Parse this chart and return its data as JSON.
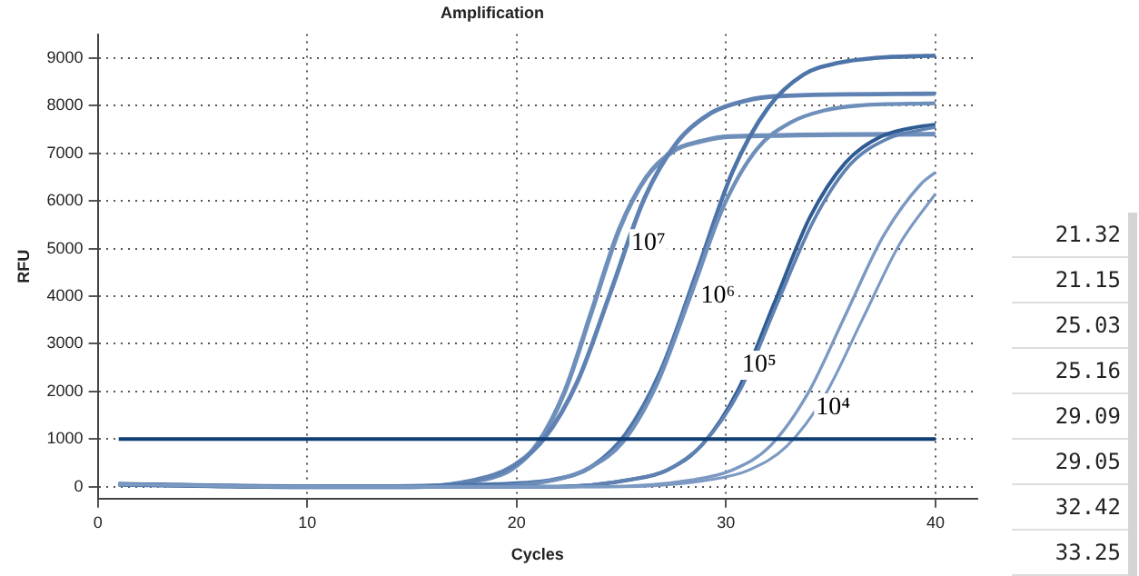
{
  "chart_data": {
    "type": "line",
    "title": "Amplification",
    "xlabel": "Cycles",
    "ylabel": "RFU",
    "xlim": [
      0,
      42
    ],
    "xticks": [
      0,
      10,
      20,
      30,
      40
    ],
    "ylim": [
      -250,
      9500
    ],
    "yticks": [
      0,
      1000,
      2000,
      3000,
      4000,
      5000,
      6000,
      7000,
      8000,
      9000
    ],
    "grid": true,
    "legend": false,
    "marker": "none",
    "line_style": "solid",
    "series": [
      {
        "color": "#6f8fbb",
        "x": [
          1,
          10,
          15,
          18.4,
          19.7,
          21,
          22.3,
          23.6,
          24.9,
          26.2,
          27.5,
          28.8,
          30.1,
          40
        ],
        "values": [
          50,
          0,
          0,
          150,
          350,
          900,
          2000,
          3700,
          5400,
          6500,
          7050,
          7250,
          7350,
          7400
        ]
      },
      {
        "color": "#5f82b2",
        "x": [
          1,
          10,
          15,
          18.1,
          19.7,
          21.3,
          22.9,
          24.5,
          26.1,
          27.7,
          29.3,
          30.9,
          32.5,
          40
        ],
        "values": [
          50,
          0,
          0,
          150,
          400,
          1000,
          2200,
          4100,
          6050,
          7250,
          7850,
          8100,
          8200,
          8250
        ]
      },
      {
        "color": "#4d74a8",
        "x": [
          1,
          10,
          19,
          21.8,
          23.5,
          25.2,
          26.9,
          28.6,
          30.3,
          32,
          33.7,
          35.4,
          37.1,
          40
        ],
        "values": [
          50,
          0,
          50,
          150,
          400,
          1100,
          2450,
          4500,
          6600,
          7950,
          8650,
          8900,
          9000,
          9050
        ]
      },
      {
        "color": "#6f8fbb",
        "x": [
          1,
          10,
          18,
          21.9,
          23.5,
          25.1,
          26.7,
          28.3,
          29.9,
          31.5,
          33.1,
          34.7,
          36.3,
          40
        ],
        "values": [
          50,
          0,
          0,
          150,
          400,
          950,
          2150,
          4000,
          5900,
          7100,
          7650,
          7900,
          8000,
          8050
        ]
      },
      {
        "color": "#2f5b93",
        "x": [
          1,
          10,
          22,
          25.5,
          27.2,
          28.9,
          30.6,
          32.3,
          34,
          35.7,
          37.4,
          39.1,
          40
        ],
        "values": [
          50,
          0,
          0,
          150,
          350,
          900,
          2050,
          3850,
          5650,
          6800,
          7350,
          7550,
          7600
        ]
      },
      {
        "color": "#5f82b2",
        "x": [
          1,
          10,
          22,
          25.4,
          27.2,
          28.9,
          30.7,
          32.4,
          34.2,
          35.9,
          37.7,
          39.4,
          40
        ],
        "values": [
          50,
          0,
          0,
          150,
          350,
          900,
          2050,
          3800,
          5600,
          6750,
          7300,
          7500,
          7550
        ]
      },
      {
        "color": "#7b99c2",
        "x": [
          1,
          10,
          24,
          28.5,
          30.3,
          32.1,
          33.9,
          35.7,
          37.5,
          39.3,
          40
        ],
        "values": [
          50,
          0,
          0,
          150,
          350,
          850,
          1950,
          3600,
          5250,
          6350,
          6600
        ]
      },
      {
        "color": "#7b99c2",
        "x": [
          1,
          10,
          25,
          29.3,
          31.1,
          32.9,
          34.7,
          36.5,
          38.3,
          40
        ],
        "values": [
          50,
          0,
          0,
          150,
          350,
          850,
          1900,
          3500,
          5100,
          6150
        ]
      }
    ],
    "ref_lines": [
      {
        "axis": "y",
        "value": 1000,
        "color": "#0d3d73"
      }
    ],
    "annotations": [
      "10⁷",
      "10⁶",
      "10⁵",
      "10⁴",
      "21.32",
      "21.15",
      "25.03",
      "25.16",
      "29.09",
      "29.05",
      "32.42",
      "33.25"
    ]
  }
}
